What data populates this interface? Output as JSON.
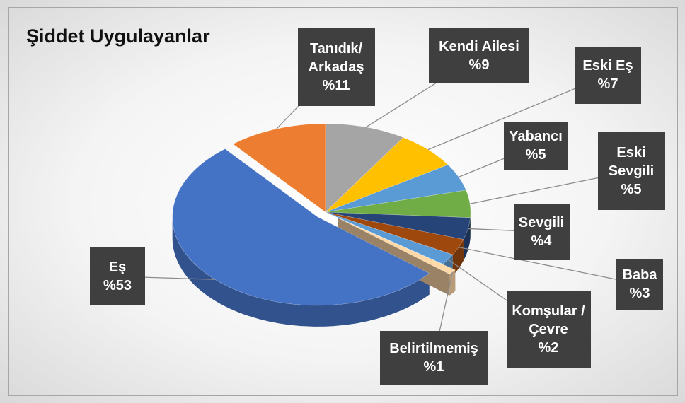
{
  "chart_data": {
    "type": "pie",
    "title": "Şiddet Uygulayanlar",
    "categories": [
      "Eş",
      "Tanıdık/ Arkadaş",
      "Kendi Ailesi",
      "Eski Eş",
      "Yabancı",
      "Eski Sevgili",
      "Sevgili",
      "Baba",
      "Komşular /Çevre",
      "Belirtilmemiş"
    ],
    "values": [
      53,
      11,
      9,
      7,
      5,
      5,
      4,
      3,
      2,
      1
    ],
    "value_labels": [
      "%53",
      "%11",
      "%9",
      "%7",
      "%5",
      "%5",
      "%4",
      "%3",
      "%2",
      "%1"
    ],
    "colors": [
      "#4472c4",
      "#ed7d31",
      "#a5a5a5",
      "#ffc000",
      "#5b9bd5",
      "#70ad47",
      "#264478",
      "#9e480e",
      "#5b9bd5",
      "#ffd9a8"
    ]
  }
}
